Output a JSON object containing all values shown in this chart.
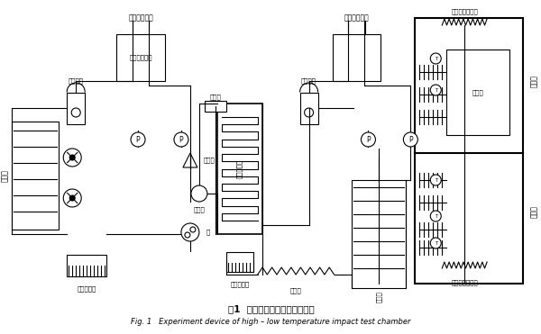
{
  "title_cn": "图1  高低温冲击试验箱实验装置",
  "title_en": "Fig. 1   Experiment device of high – low temperature impact test chamber",
  "bg_color": "#ffffff",
  "line_color": "#000000",
  "labels": {
    "high_compressor": "高温级压缩机",
    "low_compressor": "低温级压缩机",
    "oil_sep1": "油分离器",
    "oil_sep2": "油分离器",
    "condenser": "冷凝器",
    "evaporator_cn": "冷凝蒸发器",
    "dry_filter1": "干燥过滤器",
    "dry_filter2": "干燥过滤器",
    "expansion": "膨胀阀",
    "bypass": "旁通阀",
    "temp_sensor": "感温包",
    "pump": "泵",
    "evaporator": "蒸发器",
    "capillary": "毛细管",
    "high_heater": "高温箱电加热管",
    "low_heater": "低温箱电加热管",
    "high_zone": "高温区",
    "low_zone": "低温区",
    "test_box": "测试箱",
    "leng": "冷凝器"
  }
}
